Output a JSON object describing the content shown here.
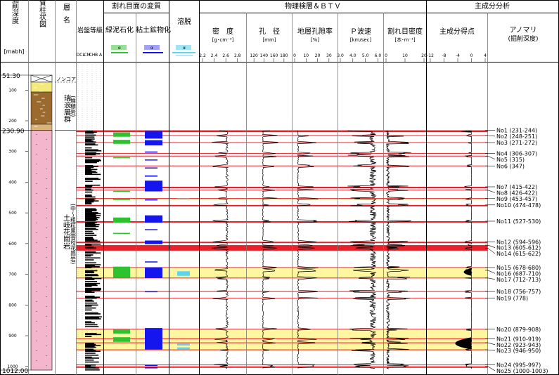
{
  "header": {
    "col_depth": "掘削深度",
    "col_depth_unit": "[mabh]",
    "col_geo": "地質柱状図",
    "col_strata": "地層名",
    "col_rock": "岩盤等級",
    "group_alteration": "割れ目面の変質",
    "col_chlorite": "緑泥石化",
    "col_clay": "粘土鉱物化",
    "col_leach": "溶脱",
    "group_physical": "物理検層＆ＢＴＶ",
    "col_density": "密　度",
    "col_density_unit": "[g･cm⁻³]",
    "col_caliper": "孔　径",
    "col_caliper_unit": "[mm]",
    "col_porosity": "地層孔隙率",
    "col_porosity_unit": "[%]",
    "col_pwave": "Ｐ波速",
    "col_pwave_unit": "[km/sec]",
    "col_fracture": "割れ目密度",
    "col_fracture_unit": "[本･m⁻¹]",
    "group_pca": "主成分分析",
    "col_pcscore": "主成分得点",
    "col_anomaly": "アノマリ",
    "col_anomaly_sub": "(掘削深度)"
  },
  "rock_classes": [
    "D",
    "CL",
    "CM",
    "CH",
    "B",
    "A"
  ],
  "legend_symbols": {
    "chlorite": "α",
    "clay": "α",
    "leach": "α"
  },
  "strata": {
    "nocore_label": "ノンコア",
    "upper_name": "瑞浪層群",
    "upper_sub": "(堆積岩)",
    "lower_name": "土岐花崗岩",
    "lower_sub": "(中～粗粒黒雲母花崗岩)"
  },
  "chart_data": {
    "type": "well-log",
    "depth_axis": {
      "label": "掘削深度",
      "unit": "mabh",
      "range": [
        51.3,
        1012.0
      ],
      "ticks": [
        100,
        200,
        300,
        400,
        500,
        600,
        700,
        800,
        900,
        1000
      ],
      "boundaries": [
        51.3,
        230.9,
        1012.0
      ]
    },
    "tracks": [
      {
        "name": "密度",
        "unit": "g·cm⁻³",
        "ticks": [
          "2.2",
          "2.4",
          "2.6",
          "2.8"
        ],
        "range": [
          2.2,
          2.9
        ]
      },
      {
        "name": "孔径",
        "unit": "mm",
        "ticks": [
          "120",
          "140",
          "160",
          "180"
        ],
        "range": [
          110,
          190
        ]
      },
      {
        "name": "地層孔隙率",
        "unit": "%",
        "ticks": [
          "0",
          "10",
          "20",
          "30"
        ],
        "range": [
          0,
          35
        ]
      },
      {
        "name": "P波速",
        "unit": "km/sec",
        "ticks": [
          "3.0",
          "4.0",
          "5.0",
          "6.0"
        ],
        "range": [
          3.0,
          6.2
        ]
      },
      {
        "name": "割れ目密度",
        "unit": "本·m⁻¹",
        "ticks": [
          "0",
          "10",
          "20"
        ],
        "range": [
          0,
          20
        ]
      },
      {
        "name": "主成分得点",
        "unit": "",
        "ticks": [
          "-12",
          "-8",
          "-4",
          "0",
          "4"
        ],
        "range": [
          -12,
          4
        ]
      }
    ],
    "anomalies": [
      {
        "id": "No1",
        "top": 231,
        "bottom": 244,
        "label": "No1 (231-244)"
      },
      {
        "id": "No2",
        "top": 248,
        "bottom": 251,
        "label": "No2 (248-251)"
      },
      {
        "id": "No3",
        "top": 271,
        "bottom": 272,
        "label": "No3 (271-272)"
      },
      {
        "id": "No4",
        "top": 306,
        "bottom": 307,
        "label": "No4 (306-307)"
      },
      {
        "id": "No5",
        "top": 315,
        "bottom": 315,
        "label": "No5 (315)"
      },
      {
        "id": "No6",
        "top": 347,
        "bottom": 347,
        "label": "No6 (347)"
      },
      {
        "id": "No7",
        "top": 415,
        "bottom": 422,
        "label": "No7 (415-422)"
      },
      {
        "id": "No8",
        "top": 426,
        "bottom": 422,
        "label": "No8 (426-422)"
      },
      {
        "id": "No9",
        "top": 453,
        "bottom": 457,
        "label": "No9 (453-457)"
      },
      {
        "id": "No10",
        "top": 474,
        "bottom": 478,
        "label": "No10 (474-478)"
      },
      {
        "id": "No11",
        "top": 527,
        "bottom": 530,
        "label": "No11 (527-530)"
      },
      {
        "id": "No12",
        "top": 594,
        "bottom": 596,
        "label": "No12 (594-596)"
      },
      {
        "id": "No13",
        "top": 605,
        "bottom": 612,
        "label": "No13 (605-612)"
      },
      {
        "id": "No14",
        "top": 615,
        "bottom": 622,
        "label": "No14 (615-622)"
      },
      {
        "id": "No15",
        "top": 678,
        "bottom": 680,
        "label": "No15 (678-680)"
      },
      {
        "id": "No16",
        "top": 687,
        "bottom": 710,
        "label": "No16 (687-710)"
      },
      {
        "id": "No17",
        "top": 712,
        "bottom": 713,
        "label": "No17 (712-713)"
      },
      {
        "id": "No18",
        "top": 756,
        "bottom": 757,
        "label": "No18 (756-757)"
      },
      {
        "id": "No19",
        "top": 778,
        "bottom": 778,
        "label": "No19 (778)"
      },
      {
        "id": "No20",
        "top": 879,
        "bottom": 908,
        "label": "No20 (879-908)"
      },
      {
        "id": "No21",
        "top": 910,
        "bottom": 919,
        "label": "No21 (910-919)"
      },
      {
        "id": "No22",
        "top": 923,
        "bottom": 943,
        "label": "No22 (923-943)"
      },
      {
        "id": "No23",
        "top": 946,
        "bottom": 950,
        "label": "No23 (946-950)"
      },
      {
        "id": "No24",
        "top": 995,
        "bottom": 997,
        "label": "No24 (995-997)"
      },
      {
        "id": "No25",
        "top": 1000,
        "bottom": 1003,
        "label": "No25 (1000-1003)"
      }
    ],
    "red_zones": [
      [
        231,
        237
      ],
      [
        415,
        420
      ],
      [
        474,
        478
      ],
      [
        527,
        530
      ],
      [
        594,
        597
      ],
      [
        605,
        623
      ],
      [
        1000,
        1003
      ]
    ],
    "red_lines": [
      248,
      271,
      306,
      315,
      347,
      426,
      453,
      678,
      712,
      756,
      778,
      879,
      910,
      923,
      946,
      995
    ],
    "yellow_zones": [
      [
        453,
        457
      ],
      [
        678,
        713
      ],
      [
        879,
        950
      ]
    ],
    "chlorite_bands": [
      [
        238,
        252
      ],
      [
        262,
        275
      ],
      [
        318,
        322
      ],
      [
        428,
        431
      ],
      [
        455,
        457
      ],
      [
        515,
        532
      ],
      [
        565,
        568
      ],
      [
        675,
        712
      ],
      [
        880,
        893
      ],
      [
        905,
        920
      ]
    ],
    "clay_bands": [
      [
        233,
        258
      ],
      [
        263,
        280
      ],
      [
        300,
        303
      ],
      [
        326,
        328
      ],
      [
        352,
        354
      ],
      [
        378,
        382
      ],
      [
        395,
        430
      ],
      [
        456,
        458
      ],
      [
        508,
        532
      ],
      [
        553,
        556
      ],
      [
        590,
        602
      ],
      [
        658,
        661
      ],
      [
        677,
        712
      ],
      [
        755,
        758
      ],
      [
        875,
        945
      ],
      [
        995,
        998
      ],
      [
        1003,
        1006
      ]
    ],
    "leach_bands": [
      [
        453,
        456
      ],
      [
        690,
        705
      ],
      [
        925,
        932
      ],
      [
        938,
        945
      ]
    ],
    "notes": {
      "colors": {
        "red": "#e8202a",
        "yellow": "#fff7a0",
        "green": "#2ec22e",
        "blue": "#1515ee",
        "cyan": "#5fd4f0",
        "pink": "#f4b6cc"
      }
    }
  }
}
